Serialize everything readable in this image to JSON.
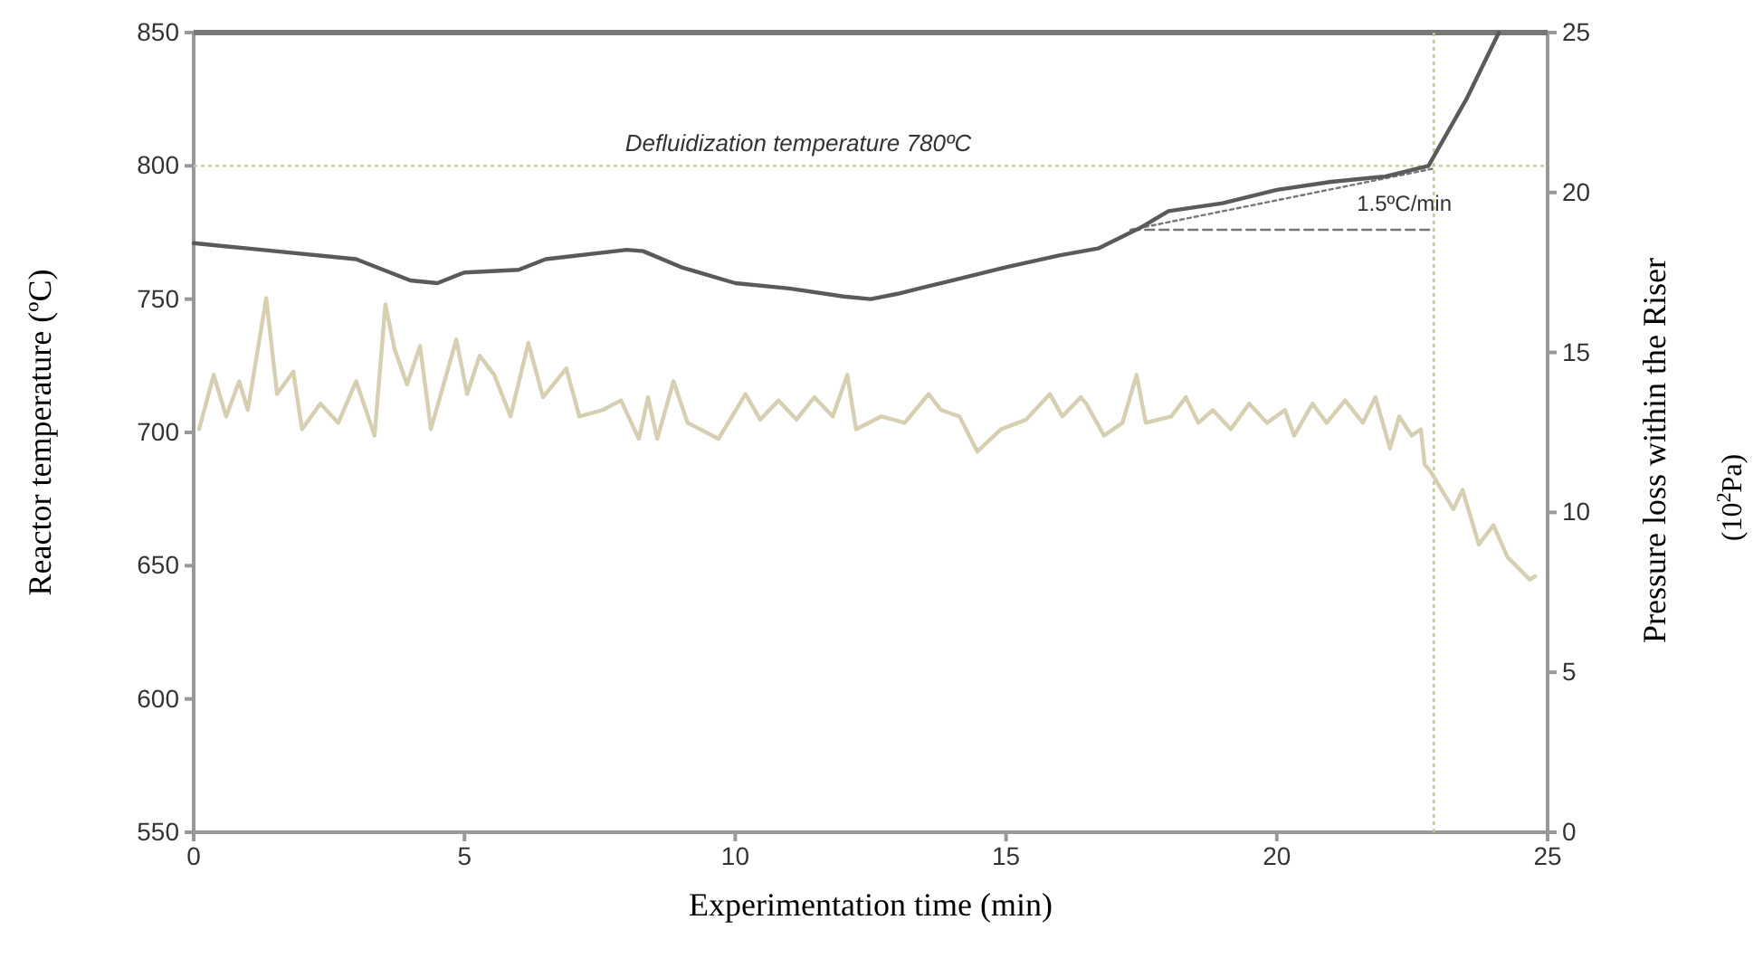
{
  "chart_data": {
    "type": "line",
    "xlabel": "Experimentation time (min)",
    "ylabel": "Reactor temperature (ºC)",
    "y2label": "Pressure loss within the Riser (10$^{2}$Pa)",
    "xlim": [
      0,
      25
    ],
    "xticks": [
      0,
      5,
      10,
      15,
      20,
      25
    ],
    "ylim": [
      550,
      850
    ],
    "yticks": [
      550,
      600,
      650,
      700,
      750,
      800,
      850
    ],
    "y2lim": [
      0,
      25
    ],
    "y2ticks": [
      0,
      5,
      10,
      15,
      20,
      25
    ],
    "grid": false,
    "marker": "none",
    "ref_lines": [
      {
        "axis": "y",
        "value": 850,
        "label": null,
        "color": "#777777",
        "line_style": "solid"
      },
      {
        "axis": "y",
        "value": 800,
        "label": "Defluidization temperature 780ºC",
        "color": "#c9c98f",
        "line_style": "dotted"
      },
      {
        "axis": "x",
        "value": 22.9,
        "label": null,
        "color": "#c9c98f",
        "line_style": "dotted"
      }
    ],
    "annotations": [
      "1.5ºC/min"
    ],
    "series": [
      {
        "color": "#5a5a5a",
        "line_style": "solid",
        "x": [
          0,
          1,
          3,
          4,
          4.5,
          5,
          6,
          6.5,
          8,
          8.3,
          9,
          10,
          11,
          12,
          12.5,
          13,
          14,
          15,
          16,
          16.7,
          17.5,
          18,
          19,
          20,
          21,
          22,
          22.8,
          23.5,
          24.1
        ],
        "values": [
          771,
          769,
          765,
          757,
          756,
          760,
          761,
          765,
          768.5,
          768,
          762,
          756,
          754,
          751,
          750,
          752,
          757,
          762,
          766.5,
          769,
          777,
          783,
          786,
          791,
          794,
          796,
          800,
          825,
          850
        ]
      },
      {
        "color": "#d6cfb2",
        "line_style": "solid",
        "axis": "y2",
        "x": [
          0.1,
          0.37,
          0.6,
          0.84,
          1.0,
          1.34,
          1.54,
          1.84,
          2.0,
          2.34,
          2.67,
          3.0,
          3.34,
          3.54,
          3.71,
          3.94,
          4.18,
          4.38,
          4.85,
          5.05,
          5.28,
          5.55,
          5.85,
          6.18,
          6.45,
          6.88,
          7.12,
          7.55,
          7.89,
          8.22,
          8.39,
          8.56,
          8.86,
          9.12,
          9.69,
          10.19,
          10.46,
          10.8,
          11.13,
          11.46,
          11.8,
          12.07,
          12.23,
          12.7,
          13.13,
          13.57,
          13.8,
          14.14,
          14.47,
          14.91,
          15.37,
          15.81,
          16.04,
          16.38,
          16.48,
          16.81,
          17.15,
          17.41,
          17.58,
          18.05,
          18.32,
          18.55,
          18.82,
          19.15,
          19.49,
          19.82,
          20.15,
          20.32,
          20.66,
          20.92,
          21.26,
          21.59,
          21.82,
          22.09,
          22.26,
          22.49,
          22.66,
          22.73,
          22.83,
          23.26,
          23.43,
          23.73,
          24.0,
          24.26,
          24.67,
          24.77
        ],
        "values": [
          12.6,
          14.3,
          13.0,
          14.1,
          13.2,
          16.7,
          13.7,
          14.4,
          12.6,
          13.4,
          12.8,
          14.1,
          12.4,
          16.5,
          15.1,
          14.0,
          15.2,
          12.6,
          15.4,
          13.7,
          14.9,
          14.3,
          13.0,
          15.3,
          13.6,
          14.5,
          13.0,
          13.2,
          13.5,
          12.3,
          13.6,
          12.3,
          14.1,
          12.8,
          12.3,
          13.7,
          12.9,
          13.5,
          12.9,
          13.6,
          13.0,
          14.3,
          12.6,
          13.0,
          12.8,
          13.7,
          13.2,
          13.0,
          11.9,
          12.6,
          12.9,
          13.7,
          13.0,
          13.6,
          13.4,
          12.4,
          12.8,
          14.3,
          12.8,
          13.0,
          13.6,
          12.8,
          13.2,
          12.6,
          13.4,
          12.8,
          13.2,
          12.4,
          13.4,
          12.8,
          13.5,
          12.8,
          13.6,
          12.0,
          13.0,
          12.4,
          12.6,
          11.5,
          11.3,
          10.1,
          10.7,
          9.0,
          9.6,
          8.6,
          7.9,
          8.0
        ]
      },
      {
        "type": "line",
        "color": "#777777",
        "line_style": "dotted",
        "x": [
          17.3,
          22.9
        ],
        "values": [
          776,
          799
        ]
      },
      {
        "type": "line",
        "color": "#777777",
        "line_style": "dashed",
        "x": [
          17.3,
          22.9
        ],
        "values": [
          776,
          776
        ]
      }
    ]
  }
}
